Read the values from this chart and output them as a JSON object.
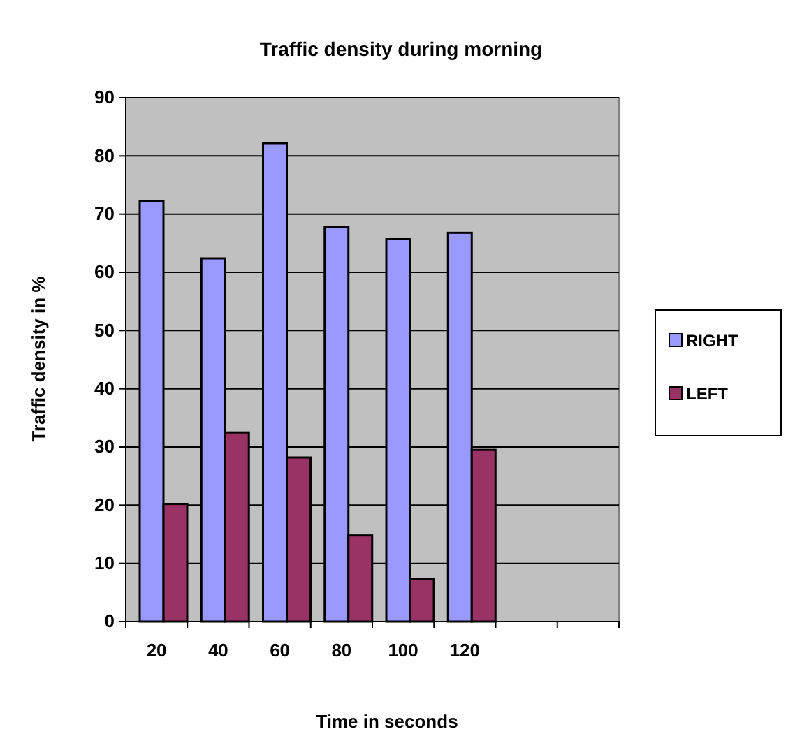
{
  "chart_data": {
    "type": "bar",
    "title": "Traffic density during morning",
    "xlabel": "Time in seconds",
    "ylabel": "Traffic density in %",
    "categories": [
      "20",
      "40",
      "60",
      "80",
      "100",
      "120",
      null,
      null
    ],
    "series": [
      {
        "name": "RIGHT",
        "color": "#9999ff",
        "values": [
          72.3,
          62.4,
          82.2,
          67.8,
          65.7,
          66.8,
          null,
          null
        ]
      },
      {
        "name": "LEFT",
        "color": "#993366",
        "values": [
          20.2,
          32.5,
          28.2,
          14.8,
          7.3,
          29.5,
          null,
          null
        ]
      }
    ],
    "ylim": [
      0,
      90
    ],
    "yticks": [
      0,
      10,
      20,
      30,
      40,
      50,
      60,
      70,
      80,
      90
    ],
    "grid": "y",
    "legend": "right"
  }
}
